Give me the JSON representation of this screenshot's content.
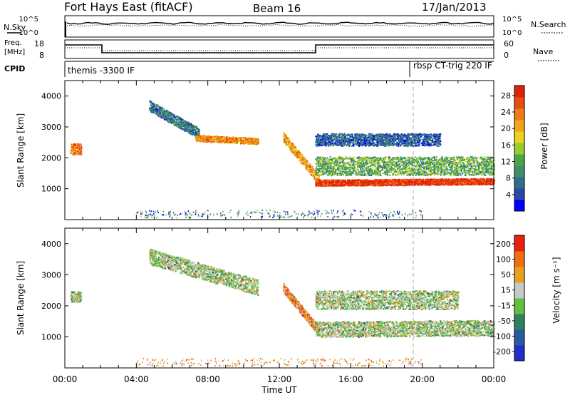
{
  "header": {
    "station": "Fort Hays East (fitACF)",
    "beam": "Beam 16",
    "date": "17/Jan/2013"
  },
  "noise_panel": {
    "left_label": "N.Sky",
    "right_label": "N.Search",
    "ticks": [
      "10^5",
      "10^0"
    ],
    "right_ticks": [
      "10^5",
      "10^0"
    ]
  },
  "freq_panel": {
    "left_label_1": "Freq.",
    "left_label_2": "[MHz]",
    "right_label": "Nave",
    "left_ticks": [
      "18",
      "8"
    ],
    "right_ticks": [
      "60",
      "0"
    ],
    "cpid_label": "CPID",
    "cpid_left": "themis -3300 IF",
    "cpid_right": "rbsp CT-trig 220 IF"
  },
  "chart_data": [
    {
      "type": "heatmap",
      "name": "power",
      "ylabel": "Slant Range [km]",
      "xlabel": "Time UT",
      "xlim_hours": [
        0,
        24
      ],
      "ylim": [
        0,
        4500
      ],
      "ytick_values": [
        1000,
        2000,
        3000,
        4000
      ],
      "xtick_labels": [
        "00:00",
        "04:00",
        "08:00",
        "12:00",
        "16:00",
        "20:00",
        "00:00"
      ],
      "colorbar": {
        "label": "Power [dB]",
        "ticks": [
          "4",
          "8",
          "12",
          "16",
          "20",
          "24",
          "28"
        ],
        "colors": [
          "#0000ff",
          "#2a46a6",
          "#2e6e8c",
          "#3d8f6a",
          "#4aa44a",
          "#9ccc2a",
          "#e8d41a",
          "#f4a41a",
          "#f07a14",
          "#e84c10",
          "#e02008"
        ]
      },
      "echo_bands": [
        {
          "t0": 0.3,
          "t1": 0.9,
          "r_start": 2300,
          "r_end": 2300,
          "width": 350,
          "level": 0.8
        },
        {
          "t0": 4.7,
          "t1": 7.5,
          "r_start": 3700,
          "r_end": 2800,
          "width": 350,
          "level": 0.25
        },
        {
          "t0": 7.3,
          "t1": 10.8,
          "r_start": 2650,
          "r_end": 2550,
          "width": 200,
          "level": 0.75
        },
        {
          "t0": 12.2,
          "t1": 14.2,
          "r_start": 2700,
          "r_end": 1300,
          "width": 300,
          "level": 0.7
        },
        {
          "t0": 14.0,
          "t1": 24.0,
          "r_start": 1200,
          "r_end": 1250,
          "width": 200,
          "level": 0.95
        },
        {
          "t0": 14.0,
          "t1": 24.0,
          "r_start": 1750,
          "r_end": 1750,
          "width": 600,
          "level": 0.4
        },
        {
          "t0": 14.0,
          "t1": 21.0,
          "r_start": 2600,
          "r_end": 2600,
          "width": 400,
          "level": 0.2
        }
      ]
    },
    {
      "type": "heatmap",
      "name": "velocity",
      "ylabel": "Slant Range [km]",
      "xlabel": "Time UT",
      "xlim_hours": [
        0,
        24
      ],
      "ylim": [
        0,
        4500
      ],
      "ytick_values": [
        1000,
        2000,
        3000,
        4000
      ],
      "xtick_labels": [
        "00:00",
        "04:00",
        "08:00",
        "12:00",
        "16:00",
        "20:00",
        "00:00"
      ],
      "colorbar": {
        "label": "Velocity [m s⁻¹]",
        "ticks": [
          "200",
          "100",
          "50",
          "15",
          "-15",
          "-50",
          "-100",
          "-200"
        ],
        "colors": [
          "#2030c8",
          "#2a5aa0",
          "#2e8060",
          "#60c040",
          "#c8c8c8",
          "#e8a020",
          "#f07010",
          "#e82010"
        ]
      },
      "echo_bands": [
        {
          "t0": 0.3,
          "t1": 0.9,
          "r_start": 2300,
          "r_end": 2300,
          "width": 350,
          "level": 0.5
        },
        {
          "t0": 4.7,
          "t1": 10.8,
          "r_start": 3600,
          "r_end": 2600,
          "width": 500,
          "level": 0.5
        },
        {
          "t0": 12.2,
          "t1": 14.2,
          "r_start": 2600,
          "r_end": 1200,
          "width": 300,
          "level": 0.75
        },
        {
          "t0": 14.0,
          "t1": 24.0,
          "r_start": 1250,
          "r_end": 1300,
          "width": 500,
          "level": 0.5
        },
        {
          "t0": 14.0,
          "t1": 22.0,
          "r_start": 2200,
          "r_end": 2200,
          "width": 600,
          "level": 0.5
        }
      ]
    }
  ]
}
